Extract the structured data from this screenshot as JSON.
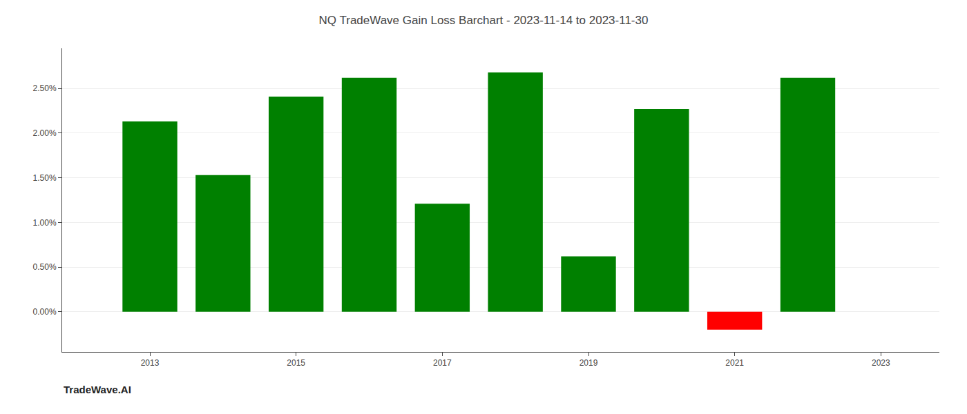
{
  "chart_data": {
    "type": "bar",
    "title": "NQ TradeWave Gain Loss Barchart - 2023-11-14 to 2023-11-30",
    "annotations": [
      "TradeWave.AI"
    ],
    "x": [
      2013,
      2014,
      2015,
      2016,
      2017,
      2018,
      2019,
      2020,
      2021,
      2022
    ],
    "values": [
      2.13,
      1.53,
      2.41,
      2.62,
      1.21,
      2.68,
      0.62,
      2.27,
      -0.2,
      2.62
    ],
    "colors": [
      "#008000",
      "#008000",
      "#008000",
      "#008000",
      "#008000",
      "#008000",
      "#008000",
      "#008000",
      "#ff0000",
      "#008000"
    ],
    "xlim": [
      2011.8,
      2023.8
    ],
    "xticks": [
      2013,
      2015,
      2017,
      2019,
      2021,
      2023
    ],
    "ylim": [
      -0.45,
      2.95
    ],
    "yticks": [
      {
        "value": 0.0,
        "label": "0.00%"
      },
      {
        "value": 0.5,
        "label": "0.50%"
      },
      {
        "value": 1.0,
        "label": "1.00%"
      },
      {
        "value": 1.5,
        "label": "1.50%"
      },
      {
        "value": 2.0,
        "label": "2.00%"
      },
      {
        "value": 2.5,
        "label": "2.50%"
      }
    ],
    "grid": true
  }
}
